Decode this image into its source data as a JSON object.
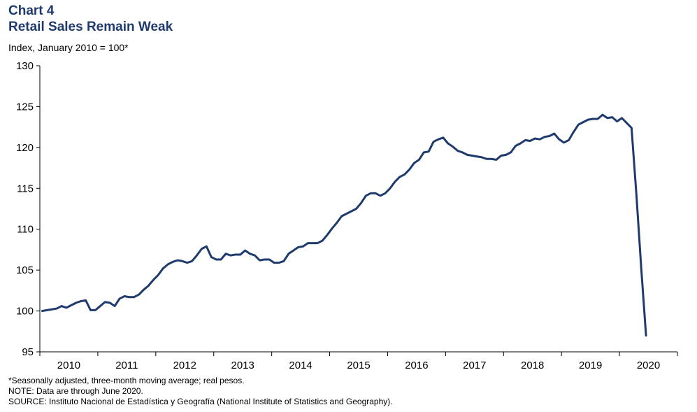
{
  "chart_data": {
    "type": "line",
    "chart_number": "Chart 4",
    "title": "Retail Sales Remain Weak",
    "ylabel": "Index, January 2010 = 100*",
    "ylim": [
      95,
      130
    ],
    "yticks": [
      "95",
      "100",
      "105",
      "110",
      "115",
      "120",
      "125",
      "130"
    ],
    "x_start": "2010-01",
    "x_end": "2020-12",
    "years": [
      "2010",
      "2011",
      "2012",
      "2013",
      "2014",
      "2015",
      "2016",
      "2017",
      "2018",
      "2019",
      "2020"
    ],
    "grid": false,
    "series": [
      {
        "color": "#1f3b6e",
        "points": [
          [
            "2010-01",
            100.0
          ],
          [
            "2010-02",
            100.1
          ],
          [
            "2010-03",
            100.2
          ],
          [
            "2010-04",
            100.3
          ],
          [
            "2010-05",
            100.6
          ],
          [
            "2010-06",
            100.4
          ],
          [
            "2010-07",
            100.7
          ],
          [
            "2010-08",
            101.0
          ],
          [
            "2010-09",
            101.2
          ],
          [
            "2010-10",
            101.3
          ],
          [
            "2010-11",
            100.1
          ],
          [
            "2010-12",
            100.1
          ],
          [
            "2011-01",
            100.6
          ],
          [
            "2011-02",
            101.1
          ],
          [
            "2011-03",
            101.0
          ],
          [
            "2011-04",
            100.6
          ],
          [
            "2011-05",
            101.5
          ],
          [
            "2011-06",
            101.8
          ],
          [
            "2011-07",
            101.7
          ],
          [
            "2011-08",
            101.7
          ],
          [
            "2011-09",
            102.0
          ],
          [
            "2011-10",
            102.6
          ],
          [
            "2011-11",
            103.1
          ],
          [
            "2011-12",
            103.8
          ],
          [
            "2012-01",
            104.4
          ],
          [
            "2012-02",
            105.2
          ],
          [
            "2012-03",
            105.7
          ],
          [
            "2012-04",
            106.0
          ],
          [
            "2012-05",
            106.2
          ],
          [
            "2012-06",
            106.1
          ],
          [
            "2012-07",
            105.9
          ],
          [
            "2012-08",
            106.1
          ],
          [
            "2012-09",
            106.8
          ],
          [
            "2012-10",
            107.6
          ],
          [
            "2012-11",
            107.9
          ],
          [
            "2012-12",
            106.6
          ],
          [
            "2013-01",
            106.3
          ],
          [
            "2013-02",
            106.3
          ],
          [
            "2013-03",
            107.0
          ],
          [
            "2013-04",
            106.8
          ],
          [
            "2013-05",
            106.9
          ],
          [
            "2013-06",
            106.9
          ],
          [
            "2013-07",
            107.4
          ],
          [
            "2013-08",
            107.0
          ],
          [
            "2013-09",
            106.8
          ],
          [
            "2013-10",
            106.2
          ],
          [
            "2013-11",
            106.3
          ],
          [
            "2013-12",
            106.3
          ],
          [
            "2014-01",
            105.9
          ],
          [
            "2014-02",
            105.9
          ],
          [
            "2014-03",
            106.1
          ],
          [
            "2014-04",
            107.0
          ],
          [
            "2014-05",
            107.4
          ],
          [
            "2014-06",
            107.8
          ],
          [
            "2014-07",
            107.9
          ],
          [
            "2014-08",
            108.3
          ],
          [
            "2014-09",
            108.3
          ],
          [
            "2014-10",
            108.3
          ],
          [
            "2014-11",
            108.6
          ],
          [
            "2014-12",
            109.3
          ],
          [
            "2015-01",
            110.1
          ],
          [
            "2015-02",
            110.8
          ],
          [
            "2015-03",
            111.6
          ],
          [
            "2015-04",
            111.9
          ],
          [
            "2015-05",
            112.2
          ],
          [
            "2015-06",
            112.5
          ],
          [
            "2015-07",
            113.2
          ],
          [
            "2015-08",
            114.1
          ],
          [
            "2015-09",
            114.4
          ],
          [
            "2015-10",
            114.4
          ],
          [
            "2015-11",
            114.1
          ],
          [
            "2015-12",
            114.4
          ],
          [
            "2016-01",
            115.0
          ],
          [
            "2016-02",
            115.8
          ],
          [
            "2016-03",
            116.4
          ],
          [
            "2016-04",
            116.7
          ],
          [
            "2016-05",
            117.3
          ],
          [
            "2016-06",
            118.1
          ],
          [
            "2016-07",
            118.5
          ],
          [
            "2016-08",
            119.4
          ],
          [
            "2016-09",
            119.5
          ],
          [
            "2016-10",
            120.7
          ],
          [
            "2016-11",
            121.0
          ],
          [
            "2016-12",
            121.2
          ],
          [
            "2017-01",
            120.5
          ],
          [
            "2017-02",
            120.1
          ],
          [
            "2017-03",
            119.6
          ],
          [
            "2017-04",
            119.4
          ],
          [
            "2017-05",
            119.1
          ],
          [
            "2017-06",
            119.0
          ],
          [
            "2017-07",
            118.9
          ],
          [
            "2017-08",
            118.8
          ],
          [
            "2017-09",
            118.6
          ],
          [
            "2017-10",
            118.6
          ],
          [
            "2017-11",
            118.5
          ],
          [
            "2017-12",
            119.0
          ],
          [
            "2018-01",
            119.1
          ],
          [
            "2018-02",
            119.4
          ],
          [
            "2018-03",
            120.2
          ],
          [
            "2018-04",
            120.5
          ],
          [
            "2018-05",
            120.9
          ],
          [
            "2018-06",
            120.8
          ],
          [
            "2018-07",
            121.1
          ],
          [
            "2018-08",
            121.0
          ],
          [
            "2018-09",
            121.3
          ],
          [
            "2018-10",
            121.4
          ],
          [
            "2018-11",
            121.7
          ],
          [
            "2018-12",
            121.0
          ],
          [
            "2019-01",
            120.6
          ],
          [
            "2019-02",
            120.9
          ],
          [
            "2019-03",
            121.9
          ],
          [
            "2019-04",
            122.8
          ],
          [
            "2019-05",
            123.1
          ],
          [
            "2019-06",
            123.4
          ],
          [
            "2019-07",
            123.5
          ],
          [
            "2019-08",
            123.5
          ],
          [
            "2019-09",
            124.0
          ],
          [
            "2019-10",
            123.6
          ],
          [
            "2019-11",
            123.7
          ],
          [
            "2019-12",
            123.2
          ],
          [
            "2020-01",
            123.6
          ],
          [
            "2020-02",
            123.0
          ],
          [
            "2020-03",
            122.4
          ],
          [
            "2020-04",
            114.3
          ],
          [
            "2020-05",
            105.3
          ],
          [
            "2020-06",
            97.0
          ]
        ]
      }
    ]
  },
  "notes": [
    "*Seasonally adjusted, three-month  moving average;  real pesos.",
    "NOTE: Data are through June 2020.",
    "SOURCE: Instituto Nacional de Estadística y Geografía  (National Institute of Statistics and Geography)."
  ]
}
